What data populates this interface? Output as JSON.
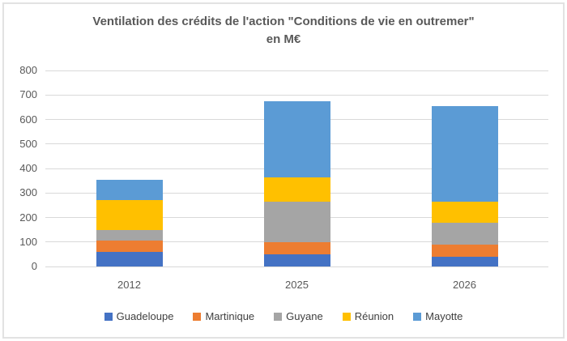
{
  "chart_data": {
    "type": "bar",
    "stacked": true,
    "title": "Ventilation des crédits de l'action \"Conditions de vie en outremer\" en M€",
    "title_lines": [
      "Ventilation des crédits de l'action \"Conditions de vie en outremer\"",
      "en M€"
    ],
    "categories": [
      "2012",
      "2025",
      "2026"
    ],
    "series": [
      {
        "name": "Guadeloupe",
        "color": "#4472C4",
        "values": [
          60,
          50,
          40
        ]
      },
      {
        "name": "Martinique",
        "color": "#ED7D31",
        "values": [
          45,
          50,
          50
        ]
      },
      {
        "name": "Guyane",
        "color": "#A5A5A5",
        "values": [
          45,
          165,
          90
        ]
      },
      {
        "name": "Réunion",
        "color": "#FFC000",
        "values": [
          120,
          100,
          85
        ]
      },
      {
        "name": "Mayotte",
        "color": "#5B9BD5",
        "values": [
          85,
          310,
          390
        ]
      }
    ],
    "totals": [
      355,
      675,
      655
    ],
    "xlabel": "",
    "ylabel": "",
    "ylim": [
      0,
      800
    ],
    "yticks": [
      0,
      100,
      200,
      300,
      400,
      500,
      600,
      700,
      800
    ],
    "grid": true,
    "legend_position": "bottom",
    "gridline_color": "#d9d9d9",
    "axis_label_color": "#595959",
    "title_color": "#595959"
  }
}
